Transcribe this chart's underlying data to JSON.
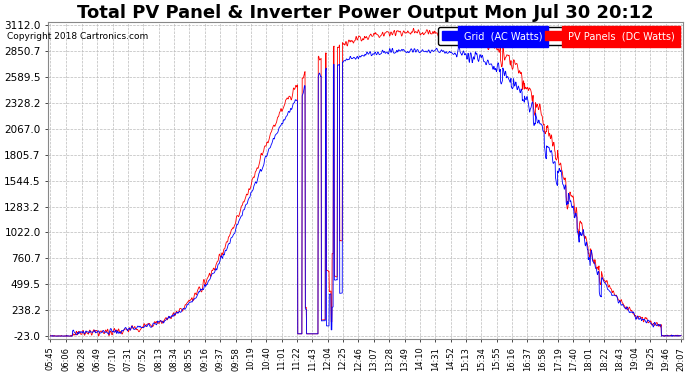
{
  "title": "Total PV Panel & Inverter Power Output Mon Jul 30 20:12",
  "copyright": "Copyright 2018 Cartronics.com",
  "legend_blue": "Grid  (AC Watts)",
  "legend_red": "PV Panels  (DC Watts)",
  "yticks": [
    3112.0,
    2850.7,
    2589.5,
    2328.2,
    2067.0,
    1805.7,
    1544.5,
    1283.2,
    1022.0,
    760.7,
    499.5,
    238.2,
    -23.0
  ],
  "ymin": -23.0,
  "ymax": 3112.0,
  "bg_color": "#ffffff",
  "plot_bg_color": "#ffffff",
  "grid_color": "#bbbbbb",
  "title_fontsize": 13,
  "label_fontsize": 7.5,
  "xtick_labels": [
    "05:45",
    "06:06",
    "06:28",
    "06:49",
    "07:10",
    "07:31",
    "07:52",
    "08:13",
    "08:34",
    "08:55",
    "09:16",
    "09:37",
    "09:58",
    "10:19",
    "10:40",
    "11:01",
    "11:22",
    "11:43",
    "12:04",
    "12:25",
    "12:46",
    "13:07",
    "13:28",
    "13:49",
    "14:10",
    "14:31",
    "14:52",
    "15:13",
    "15:34",
    "15:55",
    "16:16",
    "16:37",
    "16:58",
    "17:19",
    "17:40",
    "18:01",
    "18:22",
    "18:43",
    "19:04",
    "19:25",
    "19:46",
    "20:07"
  ]
}
